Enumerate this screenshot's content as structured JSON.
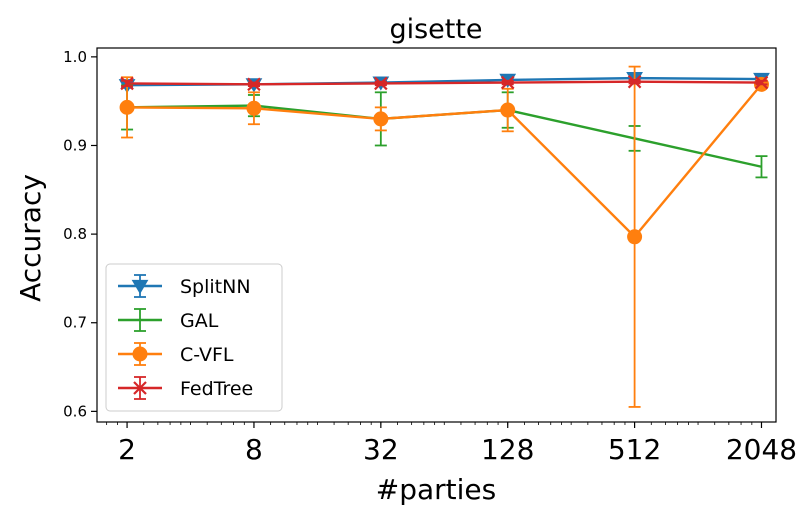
{
  "chart_data": {
    "type": "line",
    "title": "gisette",
    "xlabel": "#parties",
    "ylabel": "Accuracy",
    "x": [
      2,
      8,
      32,
      128,
      512,
      2048
    ],
    "x_tick_labels": [
      "2",
      "8",
      "32",
      "128",
      "512",
      "2048"
    ],
    "x_scale": "log2",
    "xlim": [
      1.44,
      2400
    ],
    "ylim": [
      0.588,
      1.01
    ],
    "y_ticks": [
      0.6,
      0.7,
      0.8,
      0.9,
      1.0
    ],
    "y_tick_labels": [
      "0.6",
      "0.7",
      "0.8",
      "0.9",
      "1.0"
    ],
    "legend_position": "lower-left",
    "series": [
      {
        "name": "SplitNN",
        "color": "#1f77b4",
        "marker": "triangle-down",
        "values": [
          0.968,
          0.969,
          0.971,
          0.974,
          0.976,
          0.975
        ],
        "errors": [
          0.003,
          0.002,
          0.002,
          0.002,
          0.002,
          0.002
        ]
      },
      {
        "name": "GAL",
        "color": "#2ca02c",
        "marker": "none",
        "values": [
          0.943,
          0.945,
          0.93,
          0.94,
          0.908,
          0.876
        ],
        "errors": [
          0.025,
          0.012,
          0.03,
          0.02,
          0.014,
          0.012
        ]
      },
      {
        "name": "C-VFL",
        "color": "#ff7f0e",
        "marker": "circle",
        "values": [
          0.943,
          0.942,
          0.93,
          0.94,
          0.797,
          0.969
        ],
        "errors": [
          0.034,
          0.018,
          0.013,
          0.024,
          0.192,
          0.004
        ]
      },
      {
        "name": "FedTree",
        "color": "#d62728",
        "marker": "x",
        "values": [
          0.97,
          0.969,
          0.97,
          0.971,
          0.972,
          0.971
        ],
        "errors": [
          0.003,
          0.002,
          0.002,
          0.002,
          0.002,
          0.002
        ]
      }
    ]
  }
}
